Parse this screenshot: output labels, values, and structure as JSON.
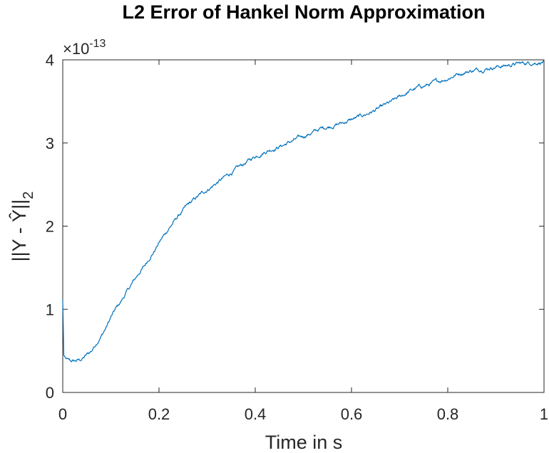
{
  "chart_data": {
    "type": "line",
    "title": "L2 Error of Hankel Norm Approximation",
    "xlabel": "Time in s",
    "ylabel_main": "||Y - Ŷ||",
    "ylabel_sub": "2",
    "exponent_prefix": "×10",
    "exponent_power": "-13",
    "xlim": [
      0,
      1
    ],
    "ylim": [
      0,
      4
    ],
    "xticks": [
      "0",
      "0.2",
      "0.4",
      "0.6",
      "0.8",
      "1"
    ],
    "yticks": [
      "0",
      "1",
      "2",
      "3",
      "4"
    ],
    "grid": false,
    "color": "#0072BD",
    "series": [
      {
        "x": [
          0,
          0.001,
          0.002,
          0.004,
          0.01,
          0.02,
          0.03,
          0.04,
          0.05,
          0.06,
          0.07,
          0.08,
          0.09,
          0.1,
          0.11,
          0.12,
          0.13,
          0.14,
          0.15,
          0.16,
          0.17,
          0.18,
          0.19,
          0.2,
          0.22,
          0.24,
          0.26,
          0.28,
          0.3,
          0.32,
          0.34,
          0.36,
          0.38,
          0.4,
          0.42,
          0.44,
          0.46,
          0.48,
          0.5,
          0.52,
          0.54,
          0.56,
          0.58,
          0.6,
          0.62,
          0.64,
          0.66,
          0.68,
          0.7,
          0.72,
          0.74,
          0.76,
          0.78,
          0.8,
          0.82,
          0.84,
          0.86,
          0.88,
          0.9,
          0.92,
          0.94,
          0.96,
          0.98,
          1.0
        ],
        "y": [
          1.12,
          0.85,
          0.45,
          0.41,
          0.38,
          0.37,
          0.38,
          0.4,
          0.45,
          0.5,
          0.6,
          0.68,
          0.78,
          0.9,
          1.0,
          1.08,
          1.18,
          1.27,
          1.36,
          1.45,
          1.52,
          1.62,
          1.7,
          1.8,
          1.97,
          2.12,
          2.25,
          2.35,
          2.44,
          2.52,
          2.6,
          2.68,
          2.76,
          2.84,
          2.9,
          2.94,
          2.98,
          3.03,
          3.08,
          3.13,
          3.18,
          3.21,
          3.24,
          3.28,
          3.32,
          3.37,
          3.42,
          3.48,
          3.55,
          3.62,
          3.67,
          3.7,
          3.74,
          3.78,
          3.83,
          3.86,
          3.88,
          3.9,
          3.92,
          3.93,
          3.95,
          3.96,
          3.97,
          3.98
        ]
      }
    ]
  }
}
